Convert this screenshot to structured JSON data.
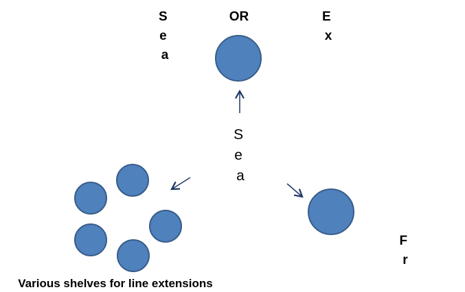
{
  "center": {
    "label": "Seaweed products in organic food shops"
  },
  "top": {
    "left_label": "Seaweed dedicated shelf",
    "or": "OR",
    "right_label": "Exotic products dedicated shelf"
  },
  "right": {
    "label": "Fresh products dedicated shelf"
  },
  "left": {
    "label": "Various shelves for line extensions"
  }
}
